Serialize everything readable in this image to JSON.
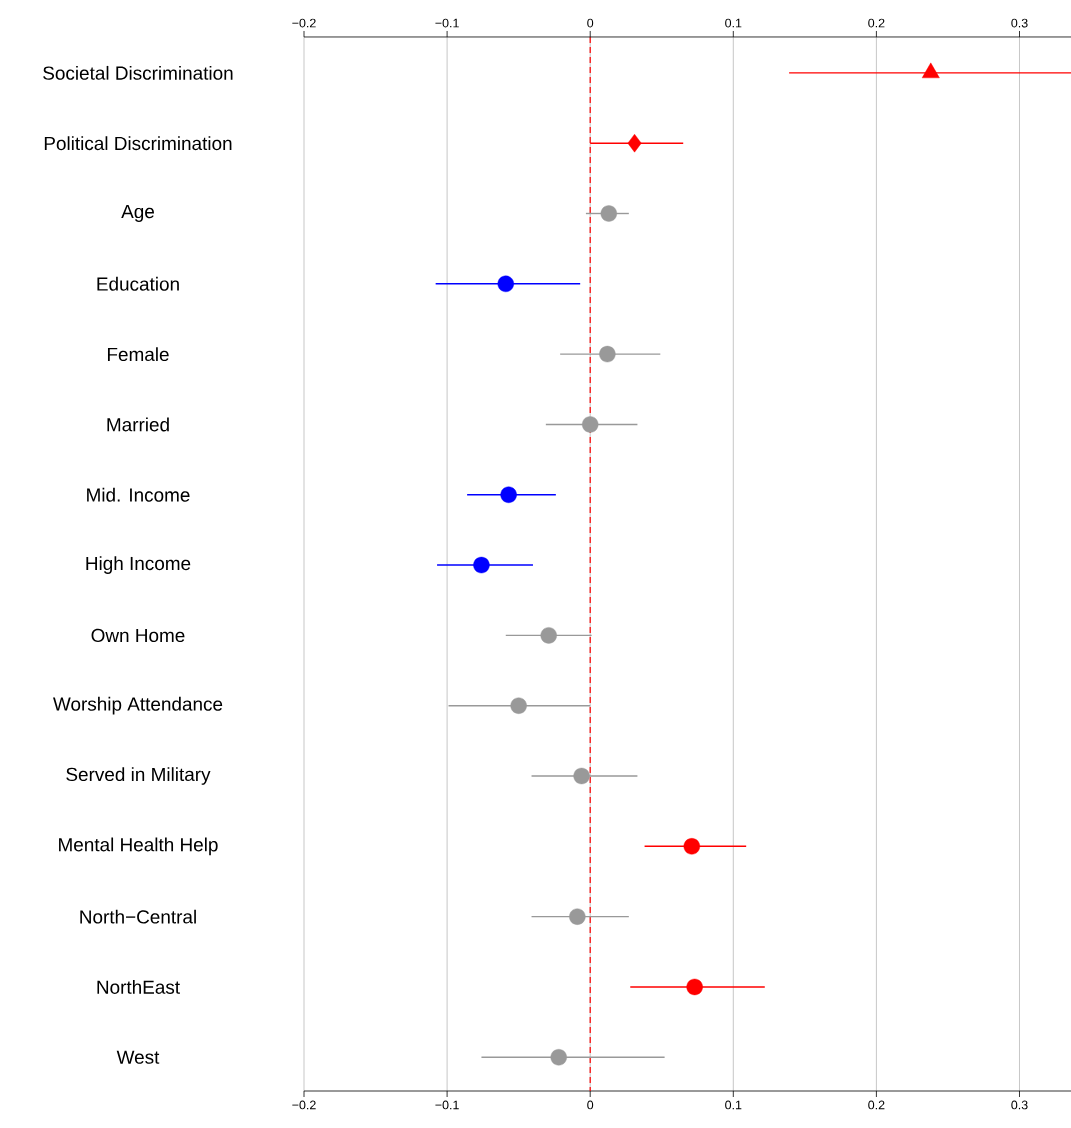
{
  "chart_data": {
    "type": "scatter",
    "orientation": "horizontal",
    "categories": [
      "Societal Discrimination",
      "Political Discrimination",
      "Age",
      "Education",
      "Female",
      "Married",
      "Mid. Income",
      "High Income",
      "Own Home",
      "Worship Attendance",
      "Served in Military",
      "Mental Health Help",
      "North−Central",
      "NorthEast",
      "West"
    ],
    "series": [
      {
        "marker": "triangle",
        "color": "#ff0000",
        "values": [
          0.238,
          null,
          null,
          null,
          null,
          null,
          null,
          null,
          null,
          null,
          null,
          null,
          null,
          null,
          null
        ],
        "errors": [
          [
            0.139,
            0.336
          ],
          null,
          null,
          null,
          null,
          null,
          null,
          null,
          null,
          null,
          null,
          null,
          null,
          null,
          null
        ]
      },
      {
        "marker": "diamond",
        "color": "#ff0000",
        "values": [
          null,
          0.031,
          null,
          null,
          null,
          null,
          null,
          null,
          null,
          null,
          null,
          null,
          null,
          null,
          null
        ],
        "errors": [
          null,
          [
            0.0,
            0.065
          ],
          null,
          null,
          null,
          null,
          null,
          null,
          null,
          null,
          null,
          null,
          null,
          null,
          null
        ]
      },
      {
        "marker": "circle",
        "colors": [
          null,
          null,
          "#999999",
          "#0000ff",
          "#999999",
          "#999999",
          "#0000ff",
          "#0000ff",
          "#999999",
          "#999999",
          "#999999",
          "#ff0000",
          "#999999",
          "#ff0000",
          "#999999"
        ],
        "values": [
          null,
          null,
          0.013,
          -0.059,
          0.012,
          0.0,
          -0.057,
          -0.076,
          -0.029,
          -0.05,
          -0.006,
          0.071,
          -0.009,
          0.073,
          -0.022
        ],
        "errors": [
          null,
          null,
          [
            -0.003,
            0.027
          ],
          [
            -0.108,
            -0.007
          ],
          [
            -0.021,
            0.049
          ],
          [
            -0.031,
            0.033
          ],
          [
            -0.086,
            -0.024
          ],
          [
            -0.107,
            -0.04
          ],
          [
            -0.059,
            0.001
          ],
          [
            -0.099,
            0.0
          ],
          [
            -0.041,
            0.033
          ],
          [
            0.038,
            0.109
          ],
          [
            -0.041,
            0.027
          ],
          [
            0.028,
            0.122
          ],
          [
            -0.076,
            0.052
          ]
        ]
      }
    ],
    "xlim": [
      -0.2,
      0.336
    ],
    "xticks": [
      {
        "value": -0.2,
        "label": "−0.2"
      },
      {
        "value": -0.1,
        "label": "−0.1"
      },
      0,
      0.1,
      0.2,
      0.3
    ],
    "x2lim": [
      -0.2,
      0.336
    ],
    "x2ticks": [
      {
        "value": -0.2,
        "label": "−0.2"
      },
      {
        "value": -0.1,
        "label": "−0.1"
      },
      0,
      0.1,
      0.2,
      0.3
    ],
    "grid": "x",
    "ref_lines": [
      {
        "axis": "x",
        "value": 0,
        "color": "#ff0000",
        "line_style": "dashed"
      }
    ]
  }
}
